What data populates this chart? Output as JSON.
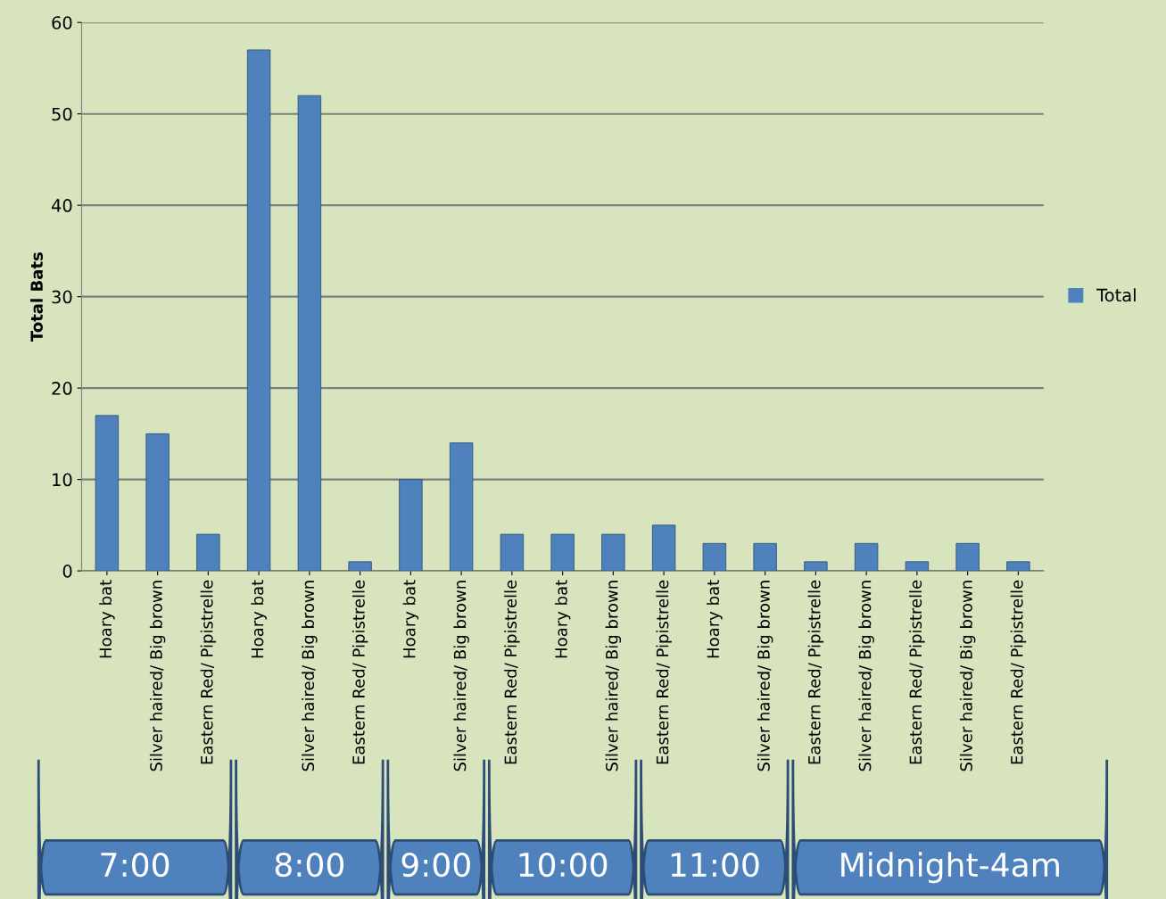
{
  "chart_data": {
    "type": "bar",
    "ylabel": "Total Bats",
    "categories": [
      "Hoary bat",
      "Silver haired/ Big brown",
      "Eastern Red/ Pipistrelle",
      "Hoary bat",
      "Silver haired/ Big brown",
      "Eastern Red/ Pipistrelle",
      "Hoary bat",
      "Silver haired/ Big brown",
      "Eastern Red/ Pipistrelle",
      "Hoary bat",
      "Silver haired/ Big brown",
      "Eastern Red/ Pipistrelle",
      "Hoary bat",
      "Silver haired/ Big brown",
      "Eastern Red/ Pipistrelle",
      "Silver haired/ Big brown",
      "Eastern Red/ Pipistrelle",
      "Silver haired/ Big brown",
      "Eastern Red/ Pipistrelle"
    ],
    "series": [
      {
        "name": "Total",
        "color": "#4f81bd",
        "values": [
          17,
          15,
          4,
          57,
          52,
          1,
          10,
          14,
          4,
          4,
          4,
          5,
          3,
          3,
          1,
          3,
          1,
          3,
          1
        ]
      }
    ],
    "annotations": [
      "7:00",
      "8:00",
      "9:00",
      "10:00",
      "11:00",
      "Midnight-4am"
    ],
    "ylim": [
      0,
      60
    ],
    "yticks": [
      0,
      10,
      20,
      30,
      40,
      50,
      60
    ],
    "grid": "y",
    "legend": "right"
  }
}
